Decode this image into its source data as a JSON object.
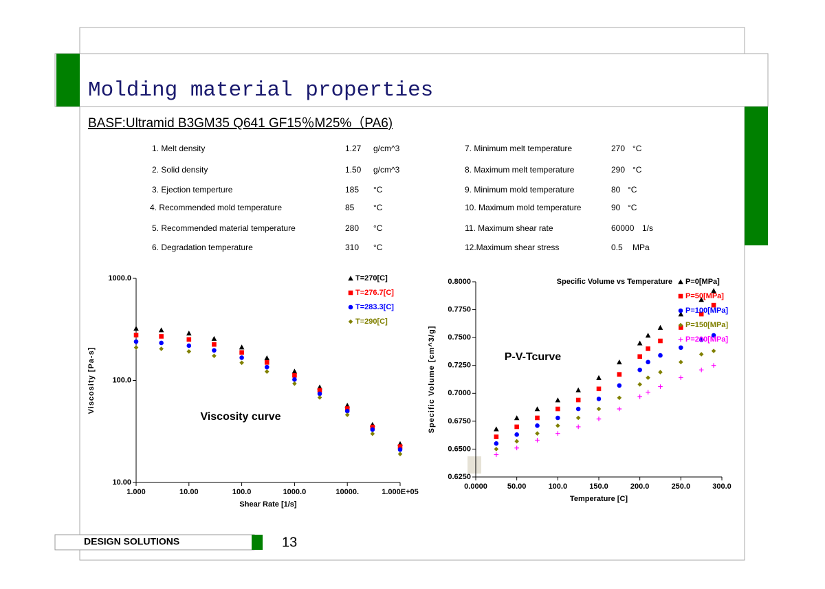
{
  "header": {
    "title": "Molding material properties",
    "subtitle": "BASF:Ultramid B3GM35 Q641 GF15％M25%（PA6)"
  },
  "properties": {
    "left": [
      [
        "1. Melt density",
        "1.27",
        "g/cm^3"
      ],
      [
        "2. Solid density",
        "1.50",
        "g/cm^3"
      ],
      [
        "3. Ejection temperture",
        "185",
        "°C"
      ],
      [
        "4. Recommended mold temperature",
        "85",
        "°C"
      ],
      [
        "5. Recommended material temperature",
        "280",
        "°C"
      ],
      [
        "6. Degradation temperature",
        "310",
        "°C"
      ]
    ],
    "right": [
      [
        "7. Minimum melt temperature",
        "270",
        "°C"
      ],
      [
        "8. Maximum melt temperature",
        "290",
        "°C"
      ],
      [
        "9. Minimum mold temperature",
        "80",
        "°C"
      ],
      [
        "10. Maximum mold temperature",
        "90",
        "°C"
      ],
      [
        "11. Maximum shear rate",
        "60000",
        "1/s"
      ],
      [
        "12.Maximum shear stress",
        "0.5",
        "MPa"
      ]
    ]
  },
  "chart_data": [
    {
      "type": "scatter",
      "annotation": "Viscosity curve",
      "x_label": "Shear Rate [1/s]",
      "y_label": "Viscosity [Pa-s]",
      "x_log": true,
      "y_log": true,
      "legend": "upper right",
      "x": [
        1,
        3,
        10,
        30,
        100,
        300,
        1000,
        3000,
        10000,
        30000,
        100000
      ],
      "series": [
        {
          "name": "T=270[C]",
          "color": "#000000",
          "marker": "triangle",
          "values": [
            323,
            312,
            290,
            257,
            212,
            166,
            123,
            86,
            57,
            37,
            24
          ]
        },
        {
          "name": "T=276.7[C]",
          "color": "#ff0000",
          "marker": "square",
          "values": [
            278,
            270,
            252,
            225,
            188,
            150,
            112,
            80,
            53,
            35,
            22.5
          ]
        },
        {
          "name": "T=283.3[C]",
          "color": "#0000ff",
          "marker": "circle",
          "values": [
            240,
            233,
            219,
            197,
            167,
            135,
            102,
            74,
            50,
            33,
            21
          ]
        },
        {
          "name": "T=290[C]",
          "color": "#808000",
          "marker": "diamond",
          "values": [
            210,
            204,
            192,
            174,
            149,
            122,
            93,
            68,
            46,
            30,
            19
          ]
        }
      ],
      "xlim": [
        1,
        100000
      ],
      "xticks": [
        {
          "value": 1,
          "label": "1.000"
        },
        {
          "value": 10,
          "label": "10.00"
        },
        {
          "value": 100,
          "label": "100.0"
        },
        {
          "value": 1000,
          "label": "1000.0"
        },
        {
          "value": 10000,
          "label": "10000."
        },
        {
          "value": 100000,
          "label": "1.000E+05"
        }
      ],
      "ylim": [
        10,
        1000
      ],
      "yticks": [
        {
          "value": 10,
          "label": "10.00"
        },
        {
          "value": 100,
          "label": "100.0"
        },
        {
          "value": 1000,
          "label": "1000.0"
        }
      ]
    },
    {
      "type": "scatter",
      "title": "Specific Volume vs Temperature",
      "annotation": "P-V-Tcurve",
      "x_label": "Temperature [C]",
      "y_label": "Specific Volume [cm^3/g]",
      "x_log": false,
      "y_log": false,
      "legend": "upper right",
      "x": [
        25,
        50,
        75,
        100,
        125,
        150,
        175,
        200,
        210,
        225,
        250,
        275,
        290
      ],
      "series": [
        {
          "name": "P=0[MPa]",
          "color": "#000000",
          "marker": "triangle",
          "values": [
            0.668,
            0.678,
            0.686,
            0.694,
            0.703,
            0.714,
            0.728,
            0.745,
            0.752,
            0.759,
            0.771,
            0.784,
            0.792
          ]
        },
        {
          "name": "P=50[MPa]",
          "color": "#ff0000",
          "marker": "square",
          "values": [
            0.661,
            0.67,
            0.678,
            0.686,
            0.694,
            0.704,
            0.717,
            0.733,
            0.74,
            0.747,
            0.759,
            0.771,
            0.779
          ]
        },
        {
          "name": "P=100[MPa]",
          "color": "#0000ff",
          "marker": "circle",
          "values": [
            0.655,
            0.663,
            0.671,
            0.678,
            0.686,
            0.695,
            0.707,
            0.721,
            0.728,
            0.734,
            0.741,
            0.748,
            0.752
          ]
        },
        {
          "name": "P=150[MPa]",
          "color": "#808000",
          "marker": "diamond",
          "values": [
            0.65,
            0.657,
            0.664,
            0.671,
            0.678,
            0.686,
            0.696,
            0.708,
            0.714,
            0.719,
            0.728,
            0.735,
            0.738
          ]
        },
        {
          "name": "P=200[MPa]",
          "color": "#ff00ff",
          "marker": "plus",
          "values": [
            0.645,
            0.651,
            0.658,
            0.664,
            0.67,
            0.677,
            0.686,
            0.697,
            0.701,
            0.706,
            0.714,
            0.721,
            0.725
          ]
        }
      ],
      "xlim": [
        0,
        300
      ],
      "xticks": [
        {
          "value": 0,
          "label": "0.0000"
        },
        {
          "value": 50,
          "label": "50.00"
        },
        {
          "value": 100,
          "label": "100.0"
        },
        {
          "value": 150,
          "label": "150.0"
        },
        {
          "value": 200,
          "label": "200.0"
        },
        {
          "value": 250,
          "label": "250.0"
        },
        {
          "value": 300,
          "label": "300.0"
        }
      ],
      "ylim": [
        0.625,
        0.8
      ],
      "yticks": [
        {
          "value": 0.625,
          "label": "0.6250"
        },
        {
          "value": 0.65,
          "label": "0.6500"
        },
        {
          "value": 0.675,
          "label": "0.6750"
        },
        {
          "value": 0.7,
          "label": "0.7000"
        },
        {
          "value": 0.725,
          "label": "0.7250"
        },
        {
          "value": 0.75,
          "label": "0.7500"
        },
        {
          "value": 0.775,
          "label": "0.7750"
        },
        {
          "value": 0.8,
          "label": "0.8000"
        }
      ]
    }
  ],
  "footer": {
    "label": "DESIGN SOLUTIONS",
    "page": "13"
  }
}
